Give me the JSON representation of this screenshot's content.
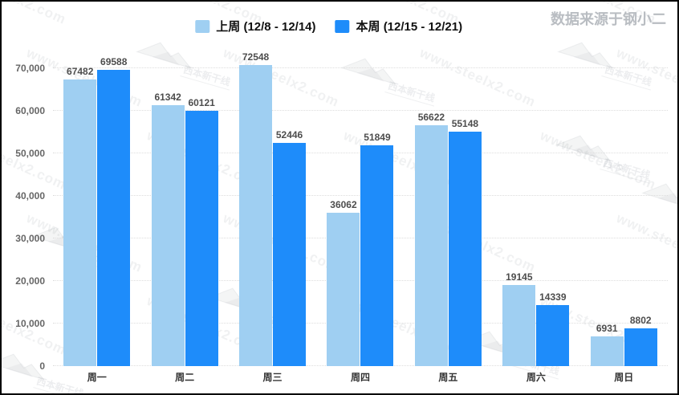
{
  "header": {
    "source": "数据来源于钢小二"
  },
  "watermark": {
    "url_text": "www.steelx2.com",
    "logo_text": "西本新干线"
  },
  "colors": {
    "last_week": "#9fcff2",
    "this_week": "#1e8cfa",
    "grid": "#dddddd"
  },
  "chart_data": {
    "type": "bar",
    "categories": [
      "周一",
      "周二",
      "周三",
      "周四",
      "周五",
      "周六",
      "周日"
    ],
    "series": [
      {
        "name": "上周 (12/8 - 12/14)",
        "color": "#9fcff2",
        "values": [
          67482,
          61342,
          72548,
          36062,
          56622,
          19145,
          6931
        ]
      },
      {
        "name": "本周 (12/15 - 12/21)",
        "color": "#1e8cfa",
        "values": [
          69588,
          60121,
          52446,
          51849,
          55148,
          14339,
          8802
        ]
      }
    ],
    "ylim": [
      0,
      74000
    ],
    "yticks": [
      0,
      10000,
      20000,
      30000,
      40000,
      50000,
      60000,
      70000
    ],
    "grid": "dotted horizontal",
    "legend_position": "top-center",
    "value_labels": true
  }
}
